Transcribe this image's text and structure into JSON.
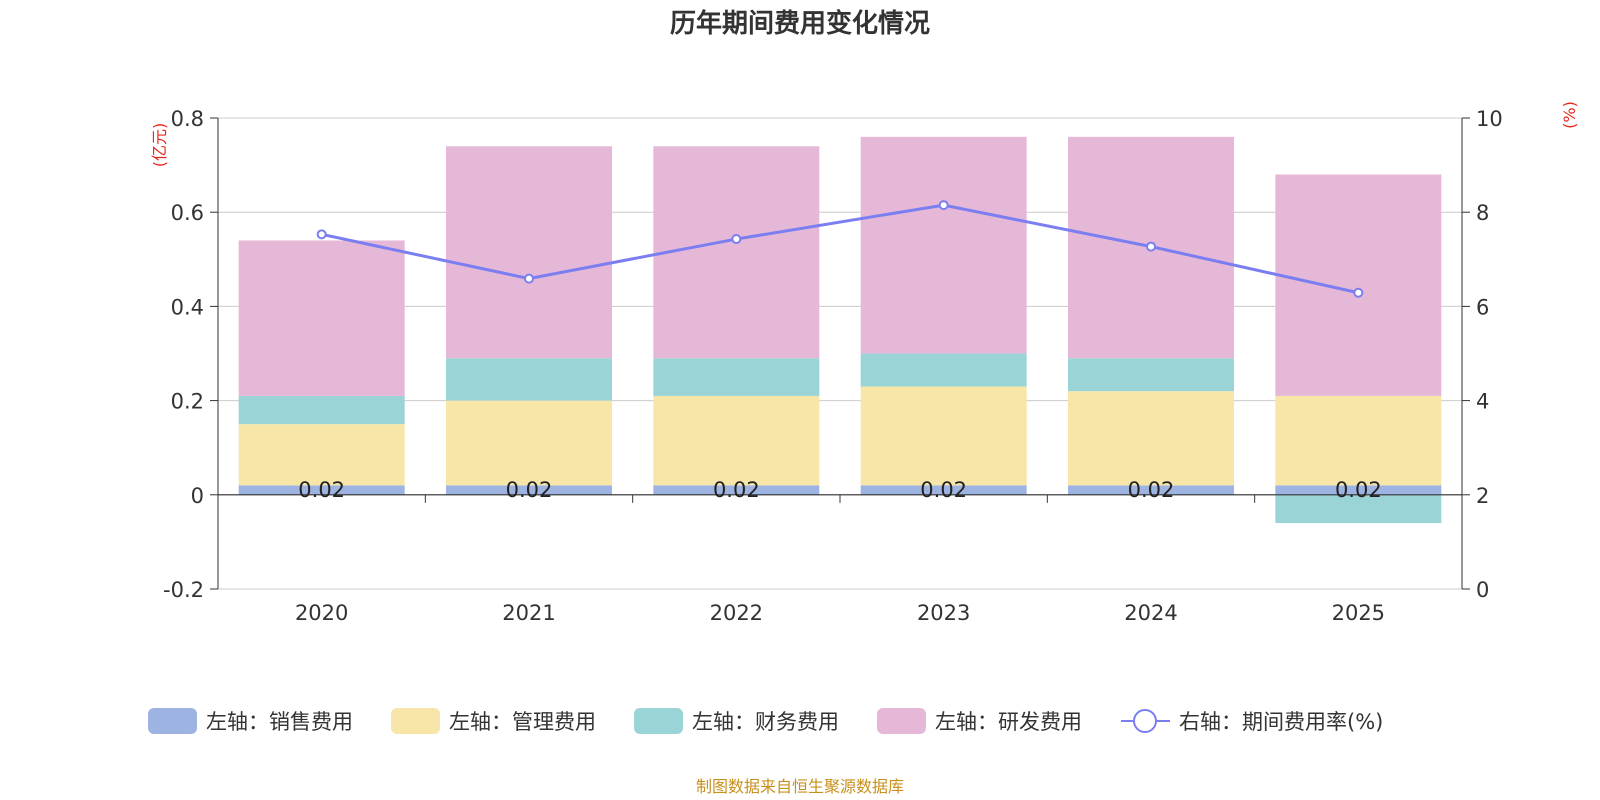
{
  "chart_data": {
    "type": "bar",
    "stacked": true,
    "title": "历年期间费用变化情况",
    "categories": [
      "2020",
      "2021",
      "2022",
      "2023",
      "2024",
      "2025"
    ],
    "left_axis": {
      "unit": "(亿元)",
      "ylim": [
        -0.2,
        0.8
      ],
      "ticks": [
        0.8,
        0.6,
        0.4,
        0.2,
        0,
        -0.2
      ]
    },
    "right_axis": {
      "unit": "(%)",
      "ylim": [
        0,
        10
      ],
      "ticks": [
        10,
        8,
        6,
        4,
        2,
        0
      ]
    },
    "series": [
      {
        "name": "左轴：销售费用",
        "axis": "left",
        "color": "#9db4e2",
        "values": [
          0.02,
          0.02,
          0.02,
          0.02,
          0.02,
          0.02
        ]
      },
      {
        "name": "左轴：管理费用",
        "axis": "left",
        "color": "#f8e6a8",
        "values": [
          0.13,
          0.18,
          0.19,
          0.21,
          0.2,
          0.19
        ]
      },
      {
        "name": "左轴：财务费用",
        "axis": "left",
        "color": "#9ad4d6",
        "values": [
          0.06,
          0.09,
          0.08,
          0.07,
          0.07,
          -0.06
        ]
      },
      {
        "name": "左轴：研发费用",
        "axis": "left",
        "color": "#e6b8d8",
        "values": [
          0.33,
          0.45,
          0.45,
          0.46,
          0.47,
          0.47
        ]
      }
    ],
    "line_series": {
      "name": "右轴：期间费用率(%)",
      "axis": "right",
      "color": "#7a7ef0",
      "values": [
        7.53,
        6.59,
        7.43,
        8.15,
        7.27,
        6.29
      ]
    },
    "data_labels": [
      "0.02",
      "0.02",
      "0.02",
      "0.02",
      "0.02",
      "0.02"
    ],
    "source": "制图数据来自恒生聚源数据库"
  }
}
